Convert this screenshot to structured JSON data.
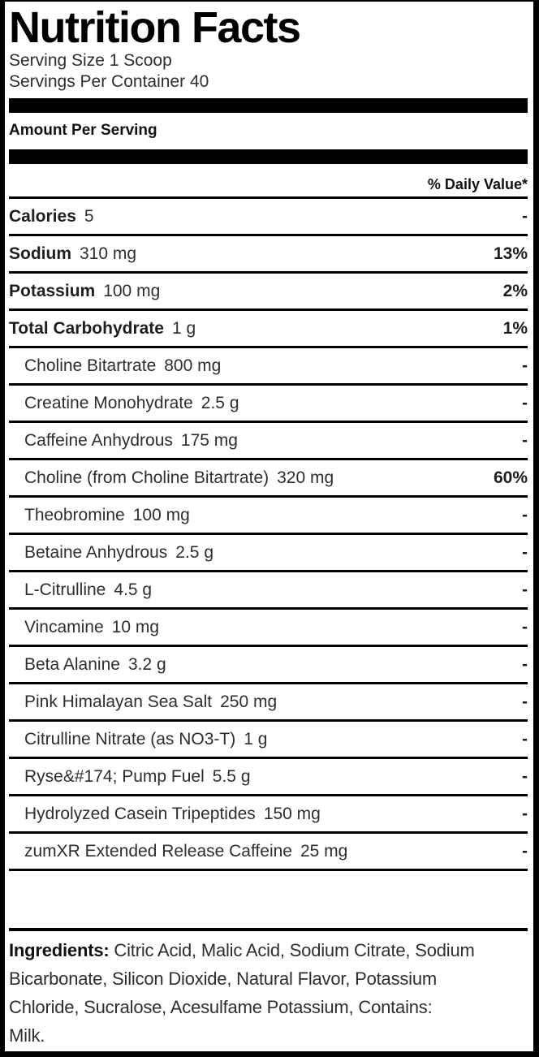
{
  "label": {
    "title": "Nutrition Facts",
    "serving_size": "Serving Size 1 Scoop",
    "servings_per_container": "Servings Per Container 40",
    "amount_per_serving": "Amount Per Serving",
    "daily_value_header": "% Daily Value*",
    "rows": [
      {
        "name": "Calories",
        "amount": "5",
        "dv": "-",
        "style": "main"
      },
      {
        "name": "Sodium",
        "amount": "310 mg",
        "dv": "13%",
        "style": "main"
      },
      {
        "name": "Potassium",
        "amount": "100 mg",
        "dv": "2%",
        "style": "main"
      },
      {
        "name": "Total Carbohydrate",
        "amount": "1 g",
        "dv": "1%",
        "style": "main"
      },
      {
        "name": "Choline Bitartrate",
        "amount": "800 mg",
        "dv": "-",
        "style": "sub"
      },
      {
        "name": "Creatine Monohydrate",
        "amount": "2.5 g",
        "dv": "-",
        "style": "sub"
      },
      {
        "name": "Caffeine Anhydrous",
        "amount": "175 mg",
        "dv": "-",
        "style": "sub"
      },
      {
        "name": "Choline (from Choline Bitartrate)",
        "amount": "320 mg",
        "dv": "60%",
        "style": "sub"
      },
      {
        "name": "Theobromine",
        "amount": "100 mg",
        "dv": "-",
        "style": "sub"
      },
      {
        "name": "Betaine Anhydrous",
        "amount": "2.5 g",
        "dv": "-",
        "style": "sub"
      },
      {
        "name": "L-Citrulline",
        "amount": "4.5 g",
        "dv": "-",
        "style": "sub"
      },
      {
        "name": "Vincamine",
        "amount": "10 mg",
        "dv": "-",
        "style": "sub"
      },
      {
        "name": "Beta Alanine",
        "amount": "3.2 g",
        "dv": "-",
        "style": "sub"
      },
      {
        "name": "Pink Himalayan Sea Salt",
        "amount": "250 mg",
        "dv": "-",
        "style": "sub"
      },
      {
        "name": "Citrulline Nitrate (as NO3-T)",
        "amount": "1 g",
        "dv": "-",
        "style": "sub"
      },
      {
        "name": "Ryse&#174; Pump Fuel",
        "amount": "5.5 g",
        "dv": "-",
        "style": "sub"
      },
      {
        "name": "Hydrolyzed Casein Tripeptides",
        "amount": "150 mg",
        "dv": "-",
        "style": "sub"
      },
      {
        "name": "zumXR Extended Release Caffeine",
        "amount": "25 mg",
        "dv": "-",
        "style": "sub"
      }
    ],
    "ingredients_label": "Ingredients:",
    "ingredients_text": " Citric Acid, Malic Acid, Sodium Citrate, Sodium\nBicarbonate, Silicon Dioxide, Natural Flavor, Potassium\nChloride, Sucralose, Acesulfame Potassium, Contains:\nMilk."
  },
  "colors": {
    "background": "#ffffff",
    "rule_black": "#000000",
    "text_dark": "#2e2e2e",
    "text_bold": "#1f1f1f"
  }
}
